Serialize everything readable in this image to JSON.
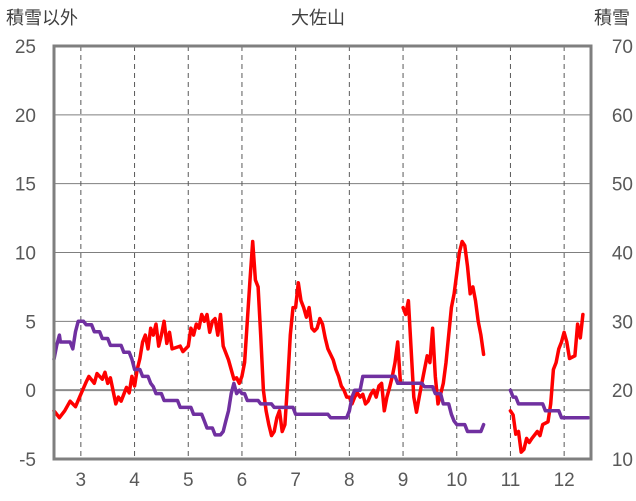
{
  "chart_data": {
    "type": "line",
    "title": "大佐山",
    "left_axis_label": "積雪以外",
    "right_axis_label": "積雪",
    "left_ylim": [
      -5,
      25
    ],
    "left_ticks": [
      "25",
      "20",
      "15",
      "10",
      "5",
      "0",
      "-5"
    ],
    "right_ylim": [
      10,
      70
    ],
    "right_ticks": [
      "70",
      "60",
      "50",
      "40",
      "30",
      "20",
      "10"
    ],
    "xlim": [
      2.5,
      12.5
    ],
    "x_ticks": [
      "3",
      "4",
      "5",
      "6",
      "7",
      "8",
      "9",
      "10",
      "11",
      "12"
    ],
    "grid": "dashed vertical at each month",
    "colors": {
      "temperature": "#ff0000",
      "snow": "#7030a0",
      "axis": "#7f7f7f",
      "grid": "#595959"
    },
    "series": [
      {
        "key": "temperature",
        "axis": "left",
        "segments": [
          [
            [
              2.5,
              -1.5
            ],
            [
              2.6,
              -2.0
            ],
            [
              2.7,
              -1.5
            ],
            [
              2.8,
              -0.8
            ],
            [
              2.9,
              -1.2
            ],
            [
              3.0,
              -0.3
            ],
            [
              3.1,
              0.6
            ],
            [
              3.15,
              1.0
            ],
            [
              3.25,
              0.5
            ],
            [
              3.3,
              1.2
            ],
            [
              3.4,
              0.8
            ],
            [
              3.45,
              1.3
            ],
            [
              3.5,
              0.5
            ],
            [
              3.55,
              0.9
            ],
            [
              3.65,
              -1.0
            ],
            [
              3.7,
              -0.5
            ],
            [
              3.75,
              -0.8
            ],
            [
              3.85,
              0.2
            ],
            [
              3.9,
              -0.2
            ],
            [
              3.95,
              1.0
            ],
            [
              4.0,
              0.3
            ],
            [
              4.05,
              1.5
            ],
            [
              4.1,
              2.3
            ],
            [
              4.15,
              3.5
            ],
            [
              4.2,
              4.0
            ],
            [
              4.25,
              3.0
            ],
            [
              4.3,
              4.5
            ],
            [
              4.35,
              4.0
            ],
            [
              4.4,
              4.8
            ],
            [
              4.45,
              3.2
            ],
            [
              4.5,
              4.0
            ],
            [
              4.55,
              5.0
            ],
            [
              4.6,
              3.4
            ],
            [
              4.65,
              4.2
            ],
            [
              4.7,
              3.0
            ],
            [
              4.85,
              3.2
            ],
            [
              4.9,
              2.8
            ],
            [
              5.0,
              3.2
            ],
            [
              5.05,
              4.5
            ],
            [
              5.1,
              4.0
            ],
            [
              5.15,
              4.8
            ],
            [
              5.2,
              4.5
            ],
            [
              5.25,
              5.5
            ],
            [
              5.3,
              5.0
            ],
            [
              5.35,
              5.5
            ],
            [
              5.4,
              4.2
            ],
            [
              5.45,
              5.0
            ],
            [
              5.5,
              5.2
            ],
            [
              5.55,
              4.0
            ],
            [
              5.6,
              5.5
            ],
            [
              5.65,
              3.2
            ],
            [
              5.75,
              2.2
            ],
            [
              5.8,
              1.5
            ],
            [
              5.85,
              0.8
            ],
            [
              5.9,
              0.9
            ],
            [
              5.95,
              0.5
            ],
            [
              6.0,
              1.0
            ],
            [
              6.05,
              2.0
            ],
            [
              6.1,
              5.0
            ],
            [
              6.15,
              8.0
            ],
            [
              6.2,
              10.8
            ],
            [
              6.25,
              8.0
            ],
            [
              6.3,
              7.5
            ],
            [
              6.35,
              4.0
            ],
            [
              6.4,
              0.0
            ],
            [
              6.45,
              -1.5
            ],
            [
              6.5,
              -2.5
            ],
            [
              6.55,
              -3.3
            ],
            [
              6.6,
              -3.0
            ],
            [
              6.65,
              -2.0
            ],
            [
              6.7,
              -1.5
            ],
            [
              6.75,
              -3.0
            ],
            [
              6.8,
              -2.5
            ],
            [
              6.85,
              0.5
            ],
            [
              6.9,
              4.0
            ],
            [
              6.95,
              6.0
            ],
            [
              7.0,
              6.0
            ],
            [
              7.05,
              7.8
            ],
            [
              7.1,
              6.5
            ],
            [
              7.15,
              6.0
            ],
            [
              7.2,
              5.3
            ],
            [
              7.25,
              6.0
            ],
            [
              7.3,
              4.5
            ],
            [
              7.35,
              4.3
            ],
            [
              7.4,
              4.5
            ],
            [
              7.45,
              5.2
            ],
            [
              7.5,
              4.8
            ],
            [
              7.55,
              3.8
            ],
            [
              7.6,
              3.0
            ],
            [
              7.7,
              2.2
            ],
            [
              7.75,
              1.5
            ],
            [
              7.8,
              1.0
            ],
            [
              7.85,
              0.3
            ],
            [
              7.9,
              0.0
            ],
            [
              7.95,
              -0.5
            ],
            [
              8.0,
              -0.5
            ],
            [
              8.05,
              -1.0
            ],
            [
              8.1,
              -0.5
            ],
            [
              8.15,
              -0.2
            ],
            [
              8.2,
              -0.5
            ],
            [
              8.25,
              -0.3
            ],
            [
              8.3,
              -1.0
            ],
            [
              8.35,
              -0.8
            ],
            [
              8.4,
              -0.3
            ],
            [
              8.45,
              0.0
            ],
            [
              8.5,
              -0.5
            ],
            [
              8.55,
              0.3
            ],
            [
              8.6,
              0.5
            ],
            [
              8.65,
              -1.5
            ],
            [
              8.7,
              -0.5
            ],
            [
              8.75,
              0.2
            ],
            [
              8.8,
              1.0
            ],
            [
              8.85,
              2.0
            ],
            [
              8.9,
              3.5
            ],
            [
              8.95,
              0.6
            ]
          ],
          [
            [
              9.0,
              6.0
            ],
            [
              9.05,
              5.5
            ],
            [
              9.1,
              6.5
            ],
            [
              9.15,
              3.0
            ],
            [
              9.2,
              -0.5
            ],
            [
              9.25,
              -1.6
            ],
            [
              9.3,
              -0.5
            ],
            [
              9.35,
              0.5
            ],
            [
              9.4,
              1.5
            ],
            [
              9.45,
              2.5
            ],
            [
              9.5,
              2.0
            ],
            [
              9.55,
              4.5
            ],
            [
              9.6,
              1.0
            ],
            [
              9.65,
              -1.0
            ],
            [
              9.7,
              -0.3
            ],
            [
              9.75,
              0.5
            ],
            [
              9.8,
              2.0
            ],
            [
              9.85,
              4.0
            ],
            [
              9.9,
              6.0
            ],
            [
              9.95,
              7.0
            ],
            [
              10.0,
              8.5
            ],
            [
              10.05,
              10.0
            ],
            [
              10.1,
              10.8
            ],
            [
              10.15,
              10.5
            ],
            [
              10.2,
              9.0
            ],
            [
              10.25,
              7.0
            ],
            [
              10.3,
              7.5
            ],
            [
              10.35,
              6.5
            ],
            [
              10.4,
              5.0
            ],
            [
              10.45,
              4.0
            ],
            [
              10.5,
              2.6
            ]
          ],
          [
            [
              11.0,
              -1.5
            ],
            [
              11.05,
              -1.8
            ],
            [
              11.1,
              -3.2
            ],
            [
              11.15,
              -3.0
            ],
            [
              11.2,
              -4.5
            ],
            [
              11.25,
              -4.3
            ],
            [
              11.3,
              -3.5
            ],
            [
              11.35,
              -3.8
            ],
            [
              11.4,
              -3.5
            ],
            [
              11.5,
              -3.0
            ],
            [
              11.55,
              -3.3
            ],
            [
              11.6,
              -2.5
            ],
            [
              11.7,
              -2.3
            ],
            [
              11.75,
              -1.0
            ],
            [
              11.8,
              1.5
            ],
            [
              11.85,
              2.0
            ],
            [
              11.9,
              3.0
            ],
            [
              11.95,
              3.5
            ],
            [
              12.0,
              4.2
            ],
            [
              12.05,
              3.5
            ],
            [
              12.1,
              2.3
            ],
            [
              12.2,
              2.5
            ],
            [
              12.25,
              4.8
            ],
            [
              12.3,
              3.8
            ],
            [
              12.35,
              5.5
            ]
          ]
        ]
      },
      {
        "key": "snow",
        "axis": "right",
        "segments": [
          [
            [
              2.5,
              24.5
            ],
            [
              2.55,
              26.5
            ],
            [
              2.6,
              28.0
            ],
            [
              2.62,
              27.0
            ],
            [
              2.8,
              27.0
            ],
            [
              2.85,
              26.0
            ],
            [
              2.9,
              28.5
            ],
            [
              2.95,
              30.0
            ],
            [
              3.05,
              30.0
            ],
            [
              3.1,
              29.5
            ],
            [
              3.2,
              29.5
            ],
            [
              3.25,
              28.5
            ],
            [
              3.35,
              28.5
            ],
            [
              3.4,
              27.5
            ],
            [
              3.5,
              27.5
            ],
            [
              3.55,
              26.5
            ],
            [
              3.75,
              26.5
            ],
            [
              3.8,
              25.5
            ],
            [
              3.9,
              25.5
            ],
            [
              3.95,
              24.5
            ],
            [
              4.0,
              23.0
            ],
            [
              4.1,
              23.0
            ],
            [
              4.15,
              22.0
            ],
            [
              4.25,
              22.0
            ],
            [
              4.3,
              21.0
            ],
            [
              4.35,
              20.5
            ],
            [
              4.4,
              19.5
            ],
            [
              4.5,
              19.5
            ],
            [
              4.55,
              18.5
            ],
            [
              4.8,
              18.5
            ],
            [
              4.85,
              17.5
            ],
            [
              5.05,
              17.5
            ],
            [
              5.1,
              16.5
            ],
            [
              5.25,
              16.5
            ],
            [
              5.3,
              15.5
            ],
            [
              5.35,
              14.5
            ],
            [
              5.45,
              14.5
            ],
            [
              5.5,
              13.5
            ],
            [
              5.6,
              13.5
            ],
            [
              5.65,
              14.0
            ],
            [
              5.7,
              15.5
            ],
            [
              5.75,
              17.0
            ],
            [
              5.8,
              19.5
            ],
            [
              5.85,
              21.0
            ],
            [
              5.9,
              19.5
            ],
            [
              5.95,
              20.0
            ],
            [
              6.0,
              19.5
            ],
            [
              6.05,
              19.5
            ],
            [
              6.1,
              18.5
            ],
            [
              6.3,
              18.5
            ],
            [
              6.35,
              18.0
            ],
            [
              6.55,
              18.0
            ],
            [
              6.6,
              17.5
            ],
            [
              6.95,
              17.5
            ],
            [
              7.0,
              16.5
            ],
            [
              7.6,
              16.5
            ],
            [
              7.65,
              16.0
            ],
            [
              7.95,
              16.0
            ],
            [
              8.0,
              17.0
            ],
            [
              8.05,
              19.0
            ],
            [
              8.1,
              20.0
            ],
            [
              8.2,
              20.0
            ],
            [
              8.25,
              22.0
            ],
            [
              8.85,
              22.0
            ],
            [
              8.9,
              21.0
            ],
            [
              9.35,
              21.0
            ],
            [
              9.4,
              20.5
            ],
            [
              9.55,
              20.5
            ],
            [
              9.6,
              19.5
            ],
            [
              9.7,
              19.5
            ],
            [
              9.75,
              18.0
            ],
            [
              9.85,
              18.0
            ],
            [
              9.9,
              16.5
            ],
            [
              9.95,
              15.5
            ],
            [
              10.0,
              15.0
            ],
            [
              10.15,
              15.0
            ],
            [
              10.2,
              14.0
            ],
            [
              10.4,
              14.0
            ],
            [
              10.45,
              14.0
            ],
            [
              10.5,
              15.0
            ]
          ],
          [
            [
              11.0,
              20.0
            ],
            [
              11.05,
              19.0
            ],
            [
              11.1,
              19.0
            ],
            [
              11.15,
              18.0
            ],
            [
              11.6,
              18.0
            ],
            [
              11.65,
              17.0
            ],
            [
              11.9,
              17.0
            ],
            [
              11.95,
              16.0
            ],
            [
              12.45,
              16.0
            ]
          ]
        ]
      }
    ]
  }
}
